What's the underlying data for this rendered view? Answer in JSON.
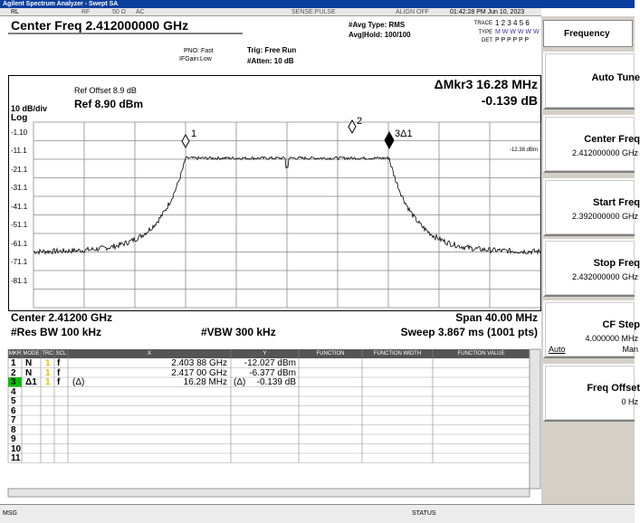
{
  "title_bar": "Agilent Spectrum Analyzer - Swept SA",
  "status_row": {
    "rl": "RL",
    "rf": "RF",
    "impedance": "50 Ω",
    "coupling": "AC",
    "sense": "SENSE:PULSE",
    "align": "ALIGN OFF",
    "datetime": "01:42:28 PM Jun 10, 2023"
  },
  "settings": {
    "center_freq": "Center Freq 2.412000000 GHz",
    "pno": "PNO: Fast",
    "ifgain": "IFGain:Low",
    "trig": "Trig: Free Run",
    "atten": "#Atten: 10 dB",
    "avg_type": "#Avg Type: RMS",
    "avg_hold": "Avg|Hold: 100/100",
    "trace_label": "TRACE",
    "trace_nums": "1 2 3 4 5 6",
    "type_label": "TYPE",
    "type_vals": "M W W W W W",
    "det_label": "DET",
    "det_vals": "P P P P P P"
  },
  "graph": {
    "ref_offset": "Ref Offset 8.9 dB",
    "scale": "10 dB/div",
    "ref_level": "Ref 8.90 dBm",
    "log": "Log",
    "delta_marker": "ΔMkr3 16.28 MHz",
    "delta_value": "-0.139 dB",
    "y_labels": [
      "-1.10",
      "-11.1",
      "-21.1",
      "-31.1",
      "-41.1",
      "-51.1",
      "-61.1",
      "-71.1",
      "-81.1"
    ],
    "marker_labels": [
      "1",
      "2",
      "3Δ1"
    ],
    "display_line": "-12.38 dBm"
  },
  "footer": {
    "center": "Center 2.41200 GHz",
    "span": "Span 40.00 MHz",
    "rbw": "#Res BW 100 kHz",
    "vbw": "#VBW 300 kHz",
    "sweep": "Sweep 3.867 ms (1001 pts)"
  },
  "marker_table": {
    "headers": [
      "MKR",
      "MODE",
      "TRC",
      "SCL",
      "X",
      "Y",
      "FUNCTION",
      "FUNCTION WIDTH",
      "FUNCTION VALUE"
    ],
    "rows": [
      {
        "mkr": "1",
        "mode": "N",
        "trc": "1",
        "scl": "f",
        "x": "2.403 88 GHz",
        "y": "-12.027 dBm"
      },
      {
        "mkr": "2",
        "mode": "N",
        "trc": "1",
        "scl": "f",
        "x": "2.417 00 GHz",
        "y": "-6.377 dBm"
      },
      {
        "mkr": "3",
        "mode": "Δ1",
        "trc": "1",
        "scl": "f",
        "x_prefix": "(Δ)",
        "x": "16.28 MHz",
        "y_prefix": "(Δ)",
        "y": "-0.139 dB"
      },
      {
        "mkr": "4"
      },
      {
        "mkr": "5"
      },
      {
        "mkr": "6"
      },
      {
        "mkr": "7"
      },
      {
        "mkr": "8"
      },
      {
        "mkr": "9"
      },
      {
        "mkr": "10"
      },
      {
        "mkr": "11"
      }
    ]
  },
  "status_bar": {
    "msg": "MSG",
    "status": "STATUS"
  },
  "softkeys": {
    "menu": "Frequency",
    "keys": [
      {
        "label": "Auto Tune"
      },
      {
        "label": "Center Freq",
        "value": "2.412000000 GHz"
      },
      {
        "label": "Start Freq",
        "value": "2.392000000 GHz"
      },
      {
        "label": "Stop Freq",
        "value": "2.432000000 GHz"
      },
      {
        "label": "CF Step",
        "value": "4.000000 MHz",
        "auto": "Auto",
        "man": "Man"
      },
      {
        "label": "Freq Offset",
        "value": "0 Hz"
      }
    ]
  }
}
